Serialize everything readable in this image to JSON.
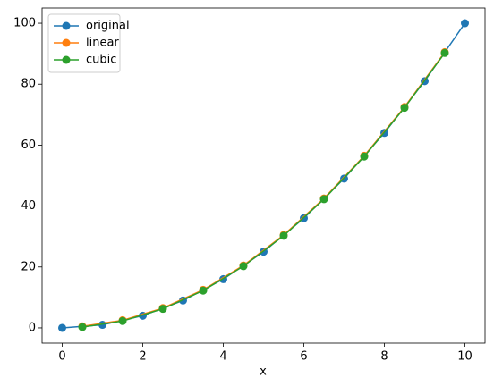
{
  "chart_data": {
    "type": "line",
    "xlabel": "x",
    "xlim": [
      -0.5,
      10.5
    ],
    "xticks": [
      0,
      2,
      4,
      6,
      8,
      10
    ],
    "ylim": [
      -5,
      105
    ],
    "yticks": [
      0,
      20,
      40,
      60,
      80,
      100
    ],
    "grid": false,
    "legend": "upper left",
    "series": [
      {
        "name": "original",
        "color": "#1f77b4",
        "x": [
          0,
          1,
          2,
          3,
          4,
          5,
          6,
          7,
          8,
          9,
          10
        ],
        "values": [
          0,
          1,
          4,
          9,
          16,
          25,
          36,
          49,
          64,
          81,
          100
        ]
      },
      {
        "name": "linear",
        "color": "#ff7f0e",
        "x": [
          0.5,
          1.5,
          2.5,
          3.5,
          4.5,
          5.5,
          6.5,
          7.5,
          8.5,
          9.5
        ],
        "values": [
          0.5,
          2.5,
          6.5,
          12.5,
          20.5,
          30.5,
          42.5,
          56.5,
          72.5,
          90.5
        ]
      },
      {
        "name": "cubic",
        "color": "#2ca02c",
        "x": [
          0.5,
          1.5,
          2.5,
          3.5,
          4.5,
          5.5,
          6.5,
          7.5,
          8.5,
          9.5
        ],
        "values": [
          0.25,
          2.25,
          6.25,
          12.25,
          20.25,
          30.25,
          42.25,
          56.25,
          72.25,
          90.25
        ]
      }
    ]
  }
}
